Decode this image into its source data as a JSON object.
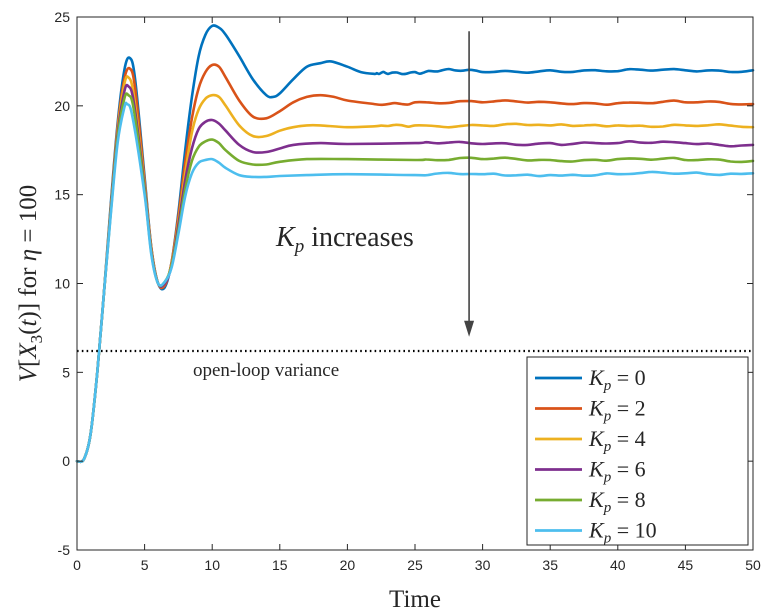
{
  "chart_data": {
    "type": "line",
    "title": "",
    "xlabel": "Time",
    "ylabel_parts": [
      "V",
      "[",
      "X",
      "3",
      "(",
      "t",
      ")]",
      " for ",
      "η",
      " = 100"
    ],
    "xlim": [
      0,
      50
    ],
    "ylim": [
      -5,
      25
    ],
    "xticks": [
      0,
      5,
      10,
      15,
      20,
      25,
      30,
      35,
      40,
      45,
      50
    ],
    "yticks": [
      -5,
      0,
      5,
      10,
      15,
      20,
      25
    ],
    "grid": false,
    "legend_position": "bottom-right",
    "reference_line": {
      "y": 6.2,
      "label": "open-loop variance",
      "style": "dotted"
    },
    "annotation": {
      "symbol": "K",
      "subscript": "p",
      "text": " increases",
      "arrow_x": 29,
      "arrow_from_y": 24.2,
      "arrow_to_y": 7.0
    },
    "series": [
      {
        "name": "Kp = 0",
        "label_sym": "K",
        "label_sub": "p",
        "label_val": " = 0",
        "color": "#0072BD",
        "x": [
          0,
          0.5,
          1,
          1.5,
          2,
          2.5,
          3,
          3.5,
          3.9,
          4.3,
          5,
          5.5,
          6,
          6.5,
          7,
          7.5,
          8,
          8.5,
          9,
          9.5,
          10,
          10.5,
          11,
          12,
          13,
          14,
          14.5,
          15,
          16,
          17,
          18,
          18.8,
          20,
          21,
          22,
          23,
          25,
          27,
          30,
          35,
          40,
          45,
          50
        ],
        "values": [
          0,
          0.1,
          1.5,
          5.0,
          9.5,
          14.5,
          19.0,
          22.0,
          22.7,
          21.5,
          16.0,
          12.0,
          10.0,
          9.8,
          11.2,
          14.0,
          17.5,
          20.5,
          22.8,
          24.0,
          24.5,
          24.4,
          24.0,
          22.8,
          21.5,
          20.6,
          20.5,
          20.7,
          21.5,
          22.2,
          22.4,
          22.5,
          22.2,
          21.9,
          21.8,
          21.8,
          21.9,
          22.0,
          21.9,
          22.0,
          21.95,
          22.0,
          22.0
        ]
      },
      {
        "name": "Kp = 2",
        "label_sym": "K",
        "label_sub": "p",
        "label_val": " = 2",
        "color": "#D95319",
        "x": [
          0,
          0.5,
          1,
          1.5,
          2,
          2.5,
          3,
          3.5,
          3.9,
          4.3,
          5,
          5.5,
          6,
          6.5,
          7,
          7.5,
          8,
          8.5,
          9,
          9.5,
          10,
          10.5,
          11,
          12,
          13,
          14,
          15,
          16,
          17,
          18,
          19,
          20,
          22,
          25,
          30,
          35,
          40,
          45,
          50
        ],
        "values": [
          0,
          0.1,
          1.5,
          5.0,
          9.5,
          14.3,
          18.8,
          21.5,
          22.1,
          21.0,
          15.8,
          12.0,
          10.0,
          9.9,
          11.2,
          13.8,
          16.8,
          19.3,
          21.0,
          21.9,
          22.3,
          22.2,
          21.6,
          20.3,
          19.4,
          19.3,
          19.7,
          20.2,
          20.5,
          20.6,
          20.5,
          20.3,
          20.1,
          20.2,
          20.2,
          20.2,
          20.15,
          20.2,
          20.1
        ]
      },
      {
        "name": "Kp = 4",
        "label_sym": "K",
        "label_sub": "p",
        "label_val": " = 4",
        "color": "#EDB120",
        "x": [
          0,
          0.5,
          1,
          1.5,
          2,
          2.5,
          3,
          3.5,
          3.8,
          4.2,
          5,
          5.5,
          6,
          6.5,
          7,
          7.5,
          8,
          8.5,
          9,
          9.5,
          10,
          10.5,
          11,
          12,
          13,
          14,
          15,
          16,
          17,
          18,
          20,
          22,
          25,
          30,
          35,
          40,
          45,
          50
        ],
        "values": [
          0,
          0.1,
          1.5,
          5.0,
          9.5,
          14.2,
          18.6,
          21.2,
          21.6,
          20.6,
          15.6,
          11.9,
          10.0,
          10.0,
          11.1,
          13.5,
          16.2,
          18.5,
          19.8,
          20.4,
          20.6,
          20.5,
          20.0,
          18.9,
          18.3,
          18.3,
          18.6,
          18.8,
          18.9,
          18.9,
          18.8,
          18.85,
          18.9,
          18.9,
          18.9,
          18.9,
          18.9,
          18.8
        ]
      },
      {
        "name": "Kp = 6",
        "label_sym": "K",
        "label_sub": "p",
        "label_val": " = 6",
        "color": "#7E2F8E",
        "x": [
          0,
          0.5,
          1,
          1.5,
          2,
          2.5,
          3,
          3.5,
          3.8,
          4.2,
          5,
          5.5,
          6,
          6.5,
          7,
          7.5,
          8,
          8.5,
          9,
          9.5,
          10,
          10.5,
          11,
          12,
          13,
          14,
          15,
          16,
          18,
          20,
          25,
          30,
          35,
          40,
          45,
          50
        ],
        "values": [
          0,
          0.1,
          1.5,
          5.0,
          9.5,
          14.1,
          18.4,
          20.8,
          21.1,
          20.2,
          15.4,
          11.8,
          10.0,
          10.0,
          11.0,
          13.3,
          15.8,
          17.6,
          18.7,
          19.1,
          19.2,
          19.0,
          18.6,
          17.8,
          17.4,
          17.4,
          17.6,
          17.8,
          17.9,
          17.85,
          17.9,
          17.85,
          17.9,
          17.9,
          17.9,
          17.8
        ]
      },
      {
        "name": "Kp = 8",
        "label_sym": "K",
        "label_sub": "p",
        "label_val": " = 8",
        "color": "#77AC30",
        "x": [
          0,
          0.5,
          1,
          1.5,
          2,
          2.5,
          3,
          3.5,
          3.8,
          4.2,
          5,
          5.5,
          6,
          6.5,
          7,
          7.5,
          8,
          8.5,
          9,
          9.5,
          10,
          10.5,
          11,
          12,
          13,
          14,
          15,
          17,
          20,
          25,
          30,
          35,
          40,
          45,
          50
        ],
        "values": [
          0,
          0.1,
          1.5,
          5.0,
          9.5,
          14.0,
          18.2,
          20.4,
          20.6,
          19.8,
          15.2,
          11.7,
          10.0,
          10.1,
          11.0,
          13.0,
          15.3,
          16.9,
          17.7,
          18.0,
          18.1,
          17.9,
          17.5,
          16.9,
          16.7,
          16.7,
          16.85,
          17.0,
          17.0,
          16.95,
          17.0,
          16.95,
          17.0,
          16.95,
          16.9
        ]
      },
      {
        "name": "Kp = 10",
        "label_sym": "K",
        "label_sub": "p",
        "label_val": " = 10",
        "color": "#4DBEEE",
        "x": [
          0,
          0.5,
          1,
          1.5,
          2,
          2.5,
          3,
          3.5,
          3.7,
          4.1,
          5,
          5.5,
          6,
          6.5,
          7,
          7.5,
          8,
          8.5,
          9,
          9.5,
          10,
          10.5,
          11,
          12,
          13,
          14,
          15,
          17,
          20,
          25,
          30,
          35,
          40,
          45,
          50
        ],
        "values": [
          0,
          0.1,
          1.5,
          5.0,
          9.5,
          13.9,
          17.9,
          19.9,
          20.1,
          19.4,
          15.0,
          11.6,
          10.0,
          10.1,
          10.9,
          12.8,
          14.9,
          16.2,
          16.8,
          16.95,
          17.0,
          16.8,
          16.5,
          16.1,
          16.0,
          16.0,
          16.05,
          16.1,
          16.15,
          16.1,
          16.15,
          16.1,
          16.15,
          16.2,
          16.2
        ]
      }
    ]
  }
}
